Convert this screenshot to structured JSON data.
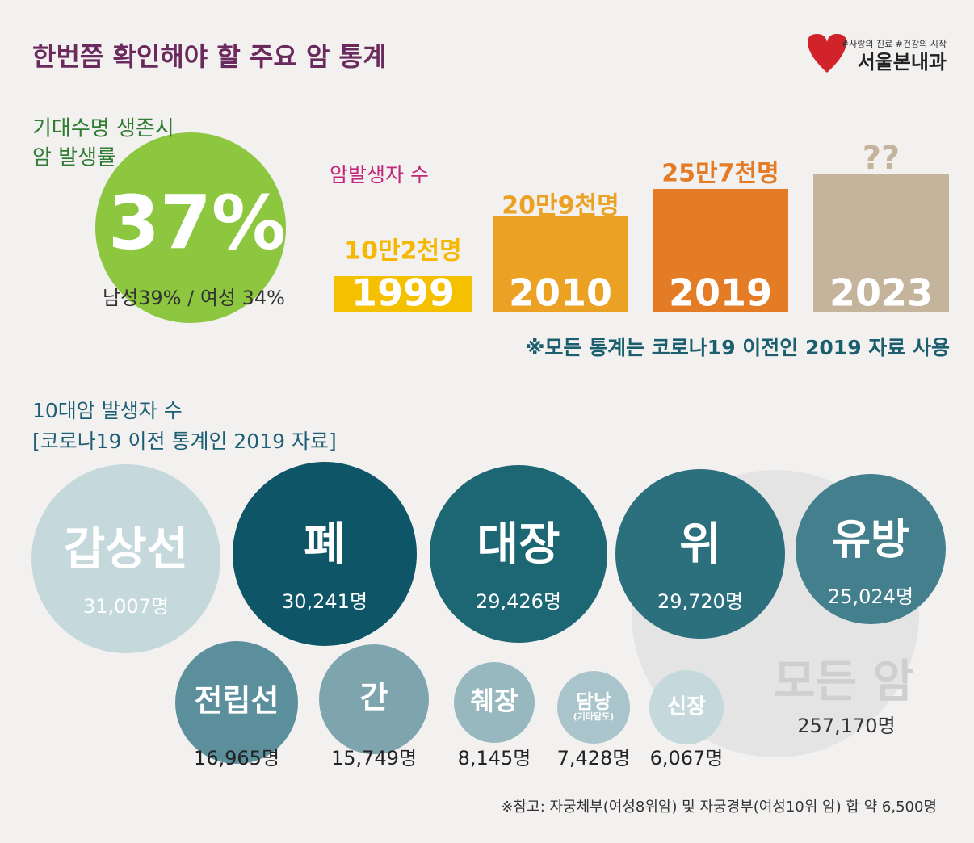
{
  "header": {
    "title": "한번쯤 확인해야 할 주요 암 통계"
  },
  "logo": {
    "tagline": "#사랑의 진료 #건강의 시작",
    "name": "서울본내과"
  },
  "survival": {
    "title": [
      "기대수명 생존시",
      "암 발생률"
    ],
    "value": "37%",
    "breakdown": "남성39% / 여성 34%"
  },
  "incidence": {
    "title": "암발생자 수",
    "bars": [
      {
        "year": "1999",
        "label": "10만2천명"
      },
      {
        "year": "2010",
        "label": "20만9천명"
      },
      {
        "year": "2019",
        "label": "25만7천명"
      },
      {
        "year": "2023",
        "label": "??"
      }
    ],
    "note": "※모든 통계는 코로나19 이전인 2019 자료 사용"
  },
  "top10": {
    "title": [
      "10대암 발생자 수",
      "[코로나19 이전 통계인 2019 자료]"
    ],
    "cancers": [
      {
        "name": "갑상선",
        "count": "31,007명"
      },
      {
        "name": "폐",
        "count": "30,241명"
      },
      {
        "name": "대장",
        "count": "29,426명"
      },
      {
        "name": "위",
        "count": "29,720명"
      },
      {
        "name": "유방",
        "count": "25,024명"
      },
      {
        "name": "전립선",
        "count": "16,965명"
      },
      {
        "name": "간",
        "count": "15,749명"
      },
      {
        "name": "췌장",
        "count": "8,145명"
      },
      {
        "name": "담낭",
        "sub": "(기타담도)",
        "count": "7,428명"
      },
      {
        "name": "신장",
        "count": "6,067명"
      }
    ],
    "total": {
      "name": "모든 암",
      "count": "257,170명"
    },
    "footnote": "※참고: 자궁체부(여성8위암) 및 자궁경부(여성10위 암) 합 약 6,500명"
  }
}
